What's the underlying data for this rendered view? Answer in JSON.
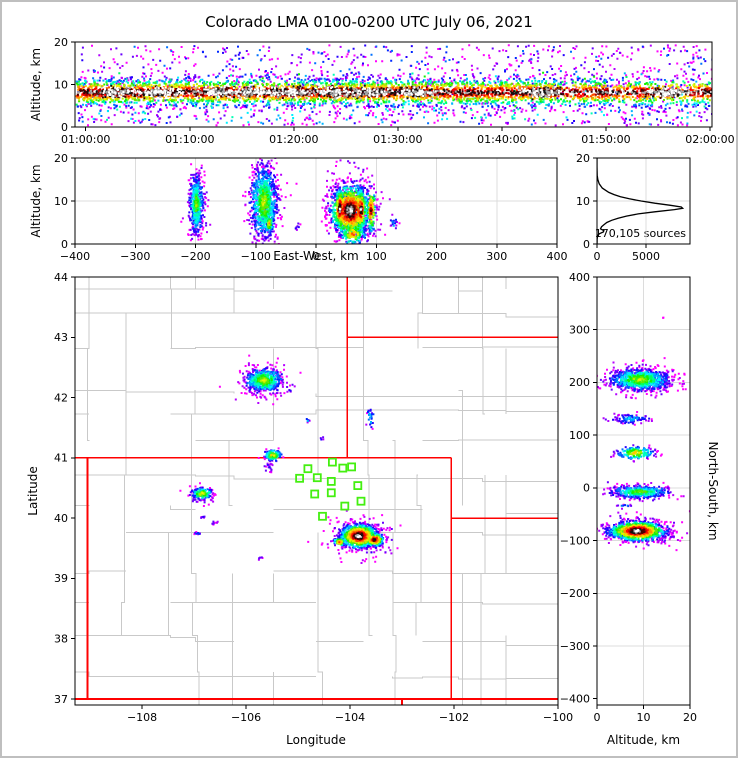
{
  "title": "Colorado LMA 0100-0200 UTC July 06, 2021",
  "ui": {
    "background": "#ffffff",
    "outer_border_color": "#bfbfbf",
    "frame_color": "#000000",
    "grid_color": "#dcdcdc",
    "county_line_color": "#c9c9c9",
    "state_border_color": "#ff0000",
    "station_color": "#44ef10",
    "curve_color": "#000000"
  },
  "colormap": [
    "#ff00ff",
    "#b400ff",
    "#6a00ff",
    "#2600ff",
    "#0028ff",
    "#0070ff",
    "#00b4ff",
    "#00f0ff",
    "#00ffb4",
    "#00ff64",
    "#16f000",
    "#64e800",
    "#b4f000",
    "#f0f000",
    "#ffc800",
    "#ff8c00",
    "#ff4600",
    "#ff0000",
    "#a80000",
    "#460000",
    "#101010",
    "#a8a8a8",
    "#ffffff"
  ],
  "chart_data": [
    {
      "id": "time_height",
      "type": "heatmap",
      "ylabel": "Altitude, km",
      "xlim": [
        -62,
        3612
      ],
      "ylim": [
        0,
        20
      ],
      "xticks": [
        {
          "v": 0,
          "label": "01:00:00"
        },
        {
          "v": 600,
          "label": "01:10:00"
        },
        {
          "v": 1200,
          "label": "01:20:00"
        },
        {
          "v": 1800,
          "label": "01:30:00"
        },
        {
          "v": 2400,
          "label": "01:40:00"
        },
        {
          "v": 3000,
          "label": "01:50:00"
        },
        {
          "v": 3600,
          "label": "02:00:00"
        }
      ],
      "yticks": [
        {
          "v": 0,
          "label": "0"
        },
        {
          "v": 10,
          "label": "10"
        },
        {
          "v": 20,
          "label": "20"
        }
      ],
      "band": {
        "x0": -60,
        "x1": 3610,
        "cy": 8.4,
        "sy": 1.55,
        "n": 4200,
        "max": 20,
        "weights": [
          [
            -60,
            2700,
            1.0
          ],
          [
            2700,
            2840,
            0.5
          ],
          [
            2840,
            3010,
            0.85
          ],
          [
            3010,
            3120,
            0.55
          ],
          [
            3120,
            3260,
            0.8
          ],
          [
            3260,
            3450,
            0.65
          ],
          [
            3450,
            3610,
            0.75
          ]
        ]
      },
      "cores": {
        "t": [
          180,
          420,
          760,
          980,
          1180,
          1420,
          1640,
          1900,
          2620,
          3350
        ],
        "sx": 55,
        "cy": 8.4,
        "sy": 0.55,
        "n": 160
      },
      "sparse": [
        {
          "x0": -60,
          "x1": 3610,
          "y0": 9.5,
          "y1": 19.5,
          "n": 620,
          "max": 5
        },
        {
          "x0": -60,
          "x1": 3610,
          "y0": 0.6,
          "y1": 5.5,
          "n": 480,
          "max": 8
        },
        {
          "x0": -60,
          "x1": 3610,
          "y0": 5.0,
          "y1": 13.0,
          "n": 420,
          "max": 10
        }
      ]
    },
    {
      "id": "ew_height",
      "type": "heatmap",
      "ylabel": "Altitude, km",
      "xlabel": "East-West, km",
      "xlim": [
        -400,
        400
      ],
      "ylim": [
        0,
        20
      ],
      "xticks": [
        {
          "v": -400,
          "label": "−400"
        },
        {
          "v": -300,
          "label": "−300"
        },
        {
          "v": -200,
          "label": "−200"
        },
        {
          "v": -100,
          "label": "−100"
        },
        {
          "v": 0,
          "label": "0"
        },
        {
          "v": 100,
          "label": "100"
        },
        {
          "v": 200,
          "label": "200"
        },
        {
          "v": 300,
          "label": "300"
        },
        {
          "v": 400,
          "label": "400"
        }
      ],
      "yticks": [
        {
          "v": 0,
          "label": "0"
        },
        {
          "v": 10,
          "label": "10"
        },
        {
          "v": 20,
          "label": "20"
        }
      ],
      "grid": {
        "x": [
          -300,
          -200,
          -100,
          0,
          100,
          200,
          300
        ],
        "y": [
          10
        ]
      },
      "blobs": [
        {
          "cx": -200,
          "cy": 9.5,
          "sx": 6,
          "sy": 3.4,
          "n": 380,
          "max": 11
        },
        {
          "cx": -200,
          "cy": 9.0,
          "sx": 9,
          "sy": 4.8,
          "n": 110,
          "max": 2
        },
        {
          "cx": -88,
          "cy": 10.0,
          "sx": 11,
          "sy": 4.2,
          "n": 760,
          "max": 12
        },
        {
          "cx": -88,
          "cy": 9.5,
          "sx": 15,
          "sy": 5.6,
          "n": 190,
          "max": 2
        },
        {
          "cx": -79,
          "cy": 5.0,
          "sx": 4,
          "sy": 1.1,
          "n": 60,
          "max": 14
        },
        {
          "cx": 55,
          "cy": 8.0,
          "sx": 16,
          "sy": 3.0,
          "n": 950,
          "max": 22
        },
        {
          "cx": 38,
          "cy": 8.5,
          "sx": 4,
          "sy": 2.3,
          "n": 190,
          "max": 22
        },
        {
          "cx": 56,
          "cy": 8.0,
          "sx": 4,
          "sy": 2.3,
          "n": 190,
          "max": 21
        },
        {
          "cx": 73,
          "cy": 8.2,
          "sx": 4,
          "sy": 2.4,
          "n": 170,
          "max": 22
        },
        {
          "cx": 90,
          "cy": 8.0,
          "sx": 4,
          "sy": 2.6,
          "n": 150,
          "max": 19
        },
        {
          "cx": 58,
          "cy": 8.0,
          "sx": 22,
          "sy": 5.2,
          "n": 240,
          "max": 3
        },
        {
          "cx": 60,
          "cy": 2.6,
          "sx": 11,
          "sy": 1.3,
          "n": 150,
          "max": 16
        },
        {
          "cx": 128,
          "cy": 5.0,
          "sx": 3,
          "sy": 0.9,
          "n": 18,
          "max": 6
        },
        {
          "cx": -32,
          "cy": 4.2,
          "sx": 2,
          "sy": 0.7,
          "n": 8,
          "max": 4
        }
      ]
    },
    {
      "id": "alt_histogram",
      "type": "line",
      "annotation": "170,105 sources",
      "xlim": [
        0,
        9490
      ],
      "ylim": [
        0,
        20
      ],
      "xticks": [
        {
          "v": 0,
          "label": "0"
        },
        {
          "v": 5000,
          "label": "5000"
        }
      ],
      "yticks": [
        {
          "v": 0,
          "label": "0"
        },
        {
          "v": 10,
          "label": "10"
        },
        {
          "v": 20,
          "label": "20"
        }
      ],
      "grid": {
        "x": [
          5000
        ],
        "y": [
          10
        ]
      },
      "profile": {
        "alt": [
          0,
          0.5,
          1,
          1.5,
          2,
          2.4,
          2.8,
          3.1,
          3.5,
          4,
          4.5,
          5,
          5.5,
          6,
          6.5,
          7,
          7.5,
          8,
          8.3,
          8.6,
          9,
          9.5,
          10,
          10.5,
          11,
          11.5,
          12,
          13,
          14,
          15,
          16,
          17,
          18,
          20
        ],
        "count": [
          2,
          6,
          15,
          30,
          70,
          260,
          640,
          700,
          360,
          460,
          700,
          1000,
          1500,
          2150,
          3000,
          4200,
          5900,
          7900,
          8750,
          8600,
          7500,
          5900,
          4500,
          3300,
          2400,
          1750,
          1200,
          540,
          220,
          80,
          25,
          8,
          3,
          0
        ]
      }
    },
    {
      "id": "plan_map",
      "type": "map-heatmap",
      "xlabel": "Longitude",
      "ylabel": "Latitude",
      "xlim": [
        -109.29,
        -100.0
      ],
      "ylim": [
        36.9,
        44.0
      ],
      "xticks": [
        {
          "v": -108,
          "label": "−108"
        },
        {
          "v": -106,
          "label": "−106"
        },
        {
          "v": -104,
          "label": "−104"
        },
        {
          "v": -102,
          "label": "−102"
        },
        {
          "v": -100,
          "label": "−100"
        }
      ],
      "yticks": [
        {
          "v": 37,
          "label": "37"
        },
        {
          "v": 38,
          "label": "38"
        },
        {
          "v": 39,
          "label": "39"
        },
        {
          "v": 40,
          "label": "40"
        },
        {
          "v": 41,
          "label": "41"
        },
        {
          "v": 42,
          "label": "42"
        },
        {
          "v": 43,
          "label": "43"
        },
        {
          "v": 44,
          "label": "44"
        }
      ],
      "state_borders": [
        [
          [
            -109.29,
            41.0
          ],
          [
            -102.05,
            41.0
          ]
        ],
        [
          [
            -109.05,
            41.0
          ],
          [
            -109.05,
            37.0
          ]
        ],
        [
          [
            -109.29,
            37.0
          ],
          [
            -100.0,
            37.0
          ]
        ],
        [
          [
            -102.05,
            41.0
          ],
          [
            -102.05,
            37.0
          ]
        ],
        [
          [
            -104.05,
            44.0
          ],
          [
            -104.05,
            41.0
          ]
        ],
        [
          [
            -104.05,
            43.0
          ],
          [
            -100.0,
            43.0
          ]
        ],
        [
          [
            -102.05,
            40.0
          ],
          [
            -100.0,
            40.0
          ]
        ],
        [
          [
            -103.0,
            37.0
          ],
          [
            -103.0,
            36.9
          ]
        ]
      ],
      "stations": [
        [
          -104.34,
          40.93
        ],
        [
          -104.81,
          40.82
        ],
        [
          -104.14,
          40.83
        ],
        [
          -103.97,
          40.85
        ],
        [
          -104.97,
          40.66
        ],
        [
          -104.63,
          40.67
        ],
        [
          -104.36,
          40.61
        ],
        [
          -103.85,
          40.54
        ],
        [
          -104.68,
          40.4
        ],
        [
          -104.36,
          40.42
        ],
        [
          -103.79,
          40.28
        ],
        [
          -104.1,
          40.2
        ],
        [
          -104.53,
          40.03
        ]
      ],
      "blobs": [
        {
          "cx": -105.68,
          "cy": 42.3,
          "sx": 0.18,
          "sy": 0.1,
          "n": 480,
          "max": 12
        },
        {
          "cx": -105.66,
          "cy": 42.3,
          "sx": 0.03,
          "sy": 0.02,
          "n": 22,
          "max": 14
        },
        {
          "cx": -105.68,
          "cy": 42.28,
          "sx": 0.27,
          "sy": 0.16,
          "n": 130,
          "max": 1
        },
        {
          "cx": -105.5,
          "cy": 41.06,
          "sx": 0.08,
          "sy": 0.045,
          "n": 120,
          "max": 14
        },
        {
          "cx": -105.58,
          "cy": 40.9,
          "sx": 0.04,
          "sy": 0.06,
          "n": 20,
          "max": 2
        },
        {
          "cx": -106.87,
          "cy": 40.42,
          "sx": 0.1,
          "sy": 0.05,
          "n": 140,
          "max": 13
        },
        {
          "cx": -106.87,
          "cy": 40.4,
          "sx": 0.16,
          "sy": 0.08,
          "n": 45,
          "max": 1
        },
        {
          "cx": -103.85,
          "cy": 39.72,
          "sx": 0.17,
          "sy": 0.095,
          "n": 850,
          "max": 22
        },
        {
          "cx": -103.55,
          "cy": 39.66,
          "sx": 0.09,
          "sy": 0.055,
          "n": 240,
          "max": 20
        },
        {
          "cx": -104.22,
          "cy": 39.62,
          "sx": 0.06,
          "sy": 0.04,
          "n": 60,
          "max": 16
        },
        {
          "cx": -103.8,
          "cy": 39.7,
          "sx": 0.3,
          "sy": 0.16,
          "n": 200,
          "max": 3
        },
        {
          "cx": -103.63,
          "cy": 41.67,
          "sx": 0.04,
          "sy": 0.1,
          "n": 26,
          "max": 7
        },
        {
          "cx": -104.84,
          "cy": 41.64,
          "sx": 0.02,
          "sy": 0.02,
          "n": 6,
          "max": 7
        },
        {
          "cx": -105.17,
          "cy": 42.14,
          "sx": 0.01,
          "sy": 0.01,
          "n": 3,
          "max": 9
        },
        {
          "cx": -104.56,
          "cy": 41.34,
          "sx": 0.02,
          "sy": 0.02,
          "n": 4,
          "max": 6
        },
        {
          "cx": -106.62,
          "cy": 39.95,
          "sx": 0.05,
          "sy": 0.02,
          "n": 8,
          "max": 2
        },
        {
          "cx": -106.85,
          "cy": 40.03,
          "sx": 0.03,
          "sy": 0.01,
          "n": 6,
          "max": 2
        },
        {
          "cx": -106.95,
          "cy": 39.76,
          "sx": 0.04,
          "sy": 0.015,
          "n": 10,
          "max": 4
        },
        {
          "cx": -105.75,
          "cy": 39.35,
          "sx": 0.03,
          "sy": 0.02,
          "n": 5,
          "max": 2
        }
      ]
    },
    {
      "id": "ns_height",
      "type": "heatmap",
      "xlabel": "Altitude, km",
      "ylabel": "North-South, km",
      "xlim": [
        0,
        20
      ],
      "ylim": [
        -412,
        400
      ],
      "xticks": [
        {
          "v": 0,
          "label": "0"
        },
        {
          "v": 10,
          "label": "10"
        },
        {
          "v": 20,
          "label": "20"
        }
      ],
      "yticks": [
        {
          "v": 400,
          "label": "400"
        },
        {
          "v": 300,
          "label": "300"
        },
        {
          "v": 200,
          "label": "200"
        },
        {
          "v": 100,
          "label": "100"
        },
        {
          "v": 0,
          "label": "0"
        },
        {
          "v": -100,
          "label": "−100"
        },
        {
          "v": -200,
          "label": "−200"
        },
        {
          "v": -300,
          "label": "−300"
        },
        {
          "v": -400,
          "label": "−400"
        }
      ],
      "grid": {
        "x": [
          10
        ],
        "y": [
          -300,
          -200,
          -100,
          0,
          100,
          200,
          300
        ]
      },
      "blobs": [
        {
          "cx": 9.0,
          "cy": 207,
          "sx": 3.2,
          "sy": 10.0,
          "n": 700,
          "max": 12
        },
        {
          "cx": 9.0,
          "cy": 207,
          "sx": 4.4,
          "sy": 14.0,
          "n": 200,
          "max": 2
        },
        {
          "cx": 7.0,
          "cy": 133,
          "sx": 2.2,
          "sy": 4.5,
          "n": 100,
          "max": 6
        },
        {
          "cx": 8.0,
          "cy": 68,
          "sx": 2.0,
          "sy": 6.0,
          "n": 190,
          "max": 14
        },
        {
          "cx": 9.0,
          "cy": -6,
          "sx": 3.2,
          "sy": 6.0,
          "n": 350,
          "max": 11
        },
        {
          "cx": 9.0,
          "cy": -6,
          "sx": 4.2,
          "sy": 9.0,
          "n": 90,
          "max": 2
        },
        {
          "cx": 8.5,
          "cy": -80,
          "sx": 3.0,
          "sy": 9.0,
          "n": 900,
          "max": 22
        },
        {
          "cx": 8.0,
          "cy": -82,
          "sx": 1.8,
          "sy": 4.0,
          "n": 230,
          "max": 22
        },
        {
          "cx": 9.0,
          "cy": -80,
          "sx": 4.4,
          "sy": 13.0,
          "n": 220,
          "max": 3
        },
        {
          "cx": 6.0,
          "cy": -32,
          "sx": 1.2,
          "sy": 0.8,
          "n": 10,
          "max": 6
        },
        {
          "cx": 14.0,
          "cy": 325,
          "sx": 0.5,
          "sy": 1.0,
          "n": 2,
          "max": 1
        }
      ]
    }
  ]
}
